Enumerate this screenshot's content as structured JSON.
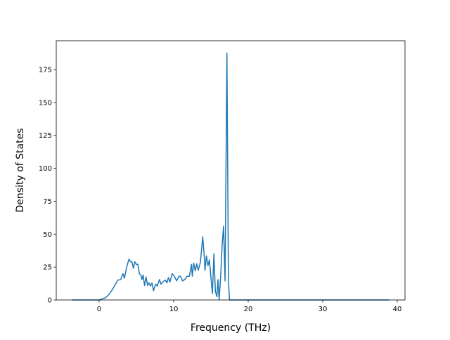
{
  "chart_data": {
    "type": "line",
    "xlabel": "Frequency (THz)",
    "ylabel": "Density of States",
    "x": [
      -3.68,
      0,
      0.85,
      1.3,
      1.8,
      2.3,
      2.5,
      2.9,
      3.2,
      3.4,
      3.7,
      4.0,
      4.2,
      4.4,
      4.6,
      4.8,
      5.0,
      5.2,
      5.4,
      5.6,
      5.75,
      5.9,
      6.1,
      6.3,
      6.5,
      6.7,
      6.9,
      7.1,
      7.3,
      7.45,
      7.6,
      7.8,
      8.1,
      8.3,
      8.6,
      8.9,
      9.1,
      9.3,
      9.5,
      9.8,
      10.1,
      10.4,
      10.7,
      10.9,
      11.2,
      11.5,
      11.8,
      12.1,
      12.4,
      12.5,
      12.7,
      12.9,
      13.1,
      13.3,
      13.6,
      13.9,
      14.1,
      14.2,
      14.4,
      14.6,
      14.8,
      15.0,
      15.2,
      15.4,
      15.6,
      15.8,
      15.95,
      16.1,
      16.3,
      16.5,
      16.7,
      16.9,
      17.15,
      17.35,
      17.5,
      38.9
    ],
    "series": [
      {
        "color": "#1f77b4",
        "values": [
          0,
          0,
          1.6,
          4,
          8,
          13,
          15,
          15.5,
          20,
          16.5,
          25,
          31,
          29,
          29,
          24,
          29,
          27,
          27,
          20,
          19,
          15.5,
          19,
          11,
          17.5,
          11,
          13,
          10.5,
          13,
          7,
          10,
          12,
          10.5,
          15.5,
          12,
          14,
          15,
          13,
          17,
          13.5,
          20,
          18,
          14.5,
          18,
          18,
          14.5,
          15.5,
          18,
          18,
          27,
          18,
          28,
          22,
          27.5,
          22.5,
          29,
          48,
          34,
          22.5,
          33.5,
          26,
          30.5,
          17,
          5,
          35,
          6.5,
          2.5,
          15.5,
          0,
          17,
          41,
          56,
          14.5,
          187.5,
          14.5,
          0,
          0
        ]
      }
    ],
    "xlim": [
      -5.75,
      41.04
    ],
    "ylim": [
      0,
      196.9
    ],
    "xticks": [
      0,
      10,
      20,
      30,
      40
    ],
    "yticks": [
      0,
      25,
      50,
      75,
      100,
      125,
      150,
      175
    ]
  }
}
